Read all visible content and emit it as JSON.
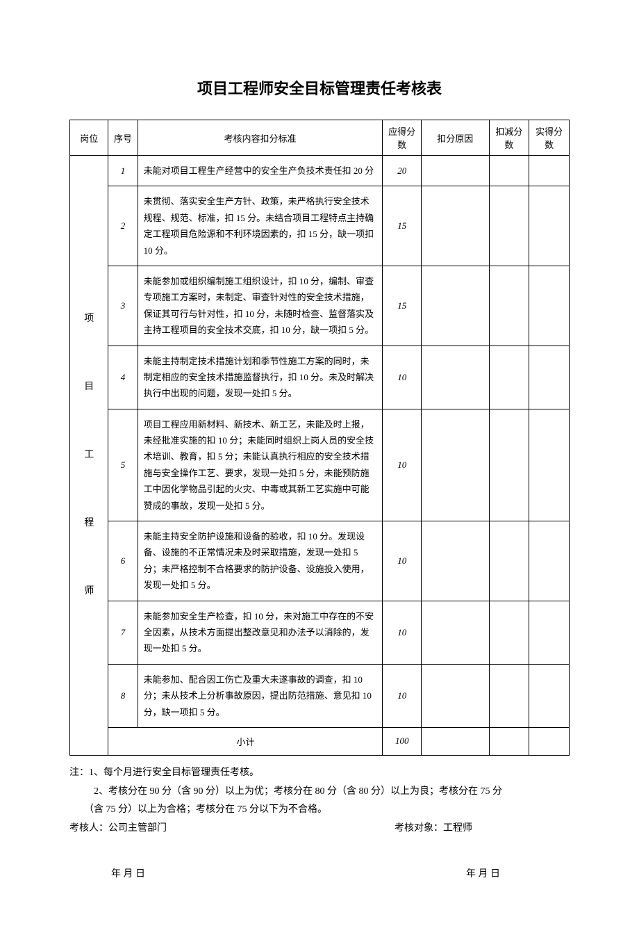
{
  "title": "项目工程师安全目标管理责任考核表",
  "headers": {
    "post": "岗位",
    "no": "序号",
    "standard": "考核内容扣分标准",
    "score": "应得分数",
    "reason": "扣分原因",
    "deduct": "扣减分数",
    "actual": "实得分数"
  },
  "post_label": "项\n目\n工\n程\n师",
  "rows": [
    {
      "no": "1",
      "content": "未能对项目工程生产经营中的安全生产负技术责任扣 20 分",
      "score": "20"
    },
    {
      "no": "2",
      "content": "未贯彻、落实安全生产方针、政策，未严格执行安全技术规程、规范、标准，扣 15 分。未结合项目工程特点主持确定工程项目危险源和不利环境因素的，扣 15 分，缺一项扣 10 分。",
      "score": "15"
    },
    {
      "no": "3",
      "content": "未能参加或组织编制施工组织设计，扣 10 分，编制、审查专项施工方案时，未制定、审查针对性的安全技术措施，保证其可行与针对性，扣 10 分，未随时检查、监督落实及主持工程项目的安全技术交底，扣 10 分，缺一项扣 5 分。",
      "score": "15"
    },
    {
      "no": "4",
      "content": "未能主持制定技术措施计划和季节性施工方案的同时，未制定相应的安全技术措施监督执行，扣 10 分。未及时解决执行中出现的问题，发现一处扣 5 分。",
      "score": "10"
    },
    {
      "no": "5",
      "content": "项目工程应用新材料、新技术、新工艺，未能及时上报，未经批准实施的扣 10 分；未能同时组织上岗人员的安全技术培训、教育，扣 5 分；未能认真执行相应的安全技术措施与安全操作工艺、要求，发现一处扣 5 分，未能预防施工中因化学物品引起的火灾、中毒或其新工艺实施中可能赞成的事故，发现一处扣 5 分。",
      "score": "10"
    },
    {
      "no": "6",
      "content": "未能主持安全防护设施和设备的验收，扣 10 分。发现设备、设施的不正常情况未及时采取措施，发现一处扣 5 分；未严格控制不合格要求的防护设备、设施投入使用，发现一处扣 5 分。",
      "score": "10"
    },
    {
      "no": "7",
      "content": "未能参加安全生产检查，扣 10 分，未对施工中存在的不安全因素，从技术方面提出整改意见和办法予以消除的，发现一处扣 5 分。",
      "score": "10"
    },
    {
      "no": "8",
      "content": "未能参加、配合因工伤亡及重大未遂事故的调查，扣 10 分；未从技术上分析事故原因，提出防范措施、意见扣 10 分，缺一项扣 5 分。",
      "score": "10"
    }
  ],
  "subtotal": {
    "label": "小计",
    "value": "100"
  },
  "notes": {
    "line1": "注：1、每个月进行安全目标管理责任考核。",
    "line2": "2、考核分在 90 分（含 90 分）以上为优；考核分在 80 分（含 80 分）以上为良；考核分在 75 分",
    "line3": "（含 75 分）以上为合格；考核分在 75 分以下为不合格。",
    "assessor": "考核人：公司主管部门",
    "assessee": "考核对象：工程师"
  },
  "date": {
    "left": "年   月   日",
    "right": "年   月   日"
  },
  "colors": {
    "text": "#000000",
    "background": "#ffffff",
    "border": "#000000"
  }
}
